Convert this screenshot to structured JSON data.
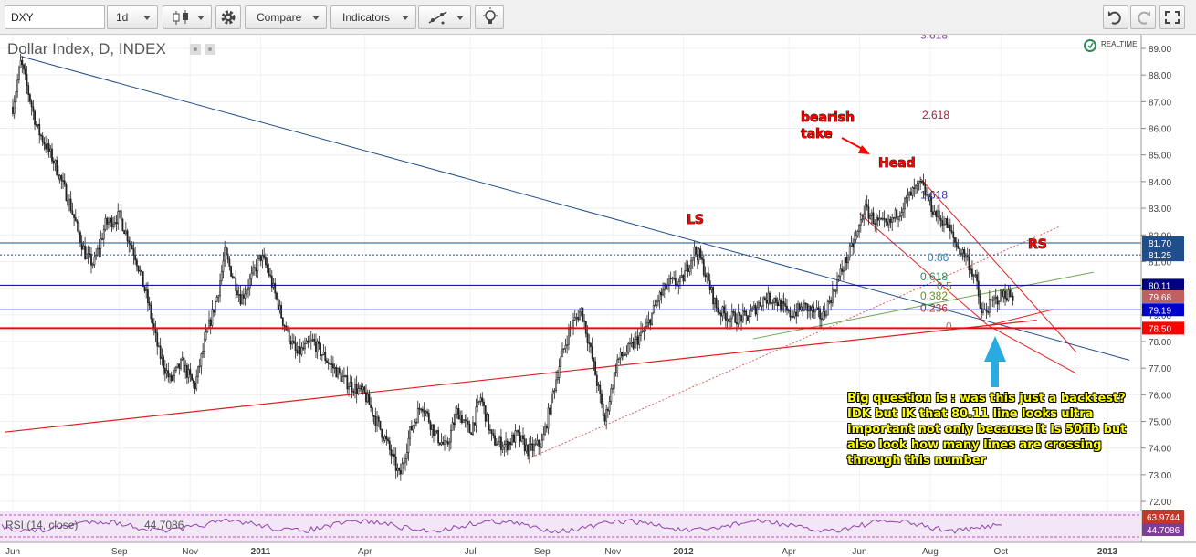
{
  "toolbar": {
    "symbol": "DXY",
    "interval": "1d",
    "compare_label": "Compare",
    "indicators_label": "Indicators"
  },
  "legend": {
    "title": "Dollar Index, D, INDEX",
    "realtime": "REALTIME",
    "rsi_label": "RSI (14, close)",
    "rsi_value": "44.7086"
  },
  "chart_data": {
    "type": "candlestick",
    "ylim": [
      71.5,
      89.5
    ],
    "y_ticks": [
      "89.00",
      "88.00",
      "87.00",
      "86.00",
      "85.00",
      "84.00",
      "83.00",
      "82.00",
      "81.00",
      "80.00",
      "79.00",
      "78.00",
      "77.00",
      "76.00",
      "75.00",
      "74.00",
      "73.00",
      "72.00"
    ],
    "x_ticks": [
      "Jun",
      "Sep",
      "Nov",
      "2011",
      "Apr",
      "Jul",
      "Sep",
      "Nov",
      "2012",
      "Apr",
      "Jun",
      "Aug",
      "Oct",
      "2013"
    ],
    "price_path": [
      [
        "2010-06-01",
        86.8
      ],
      [
        "2010-06-08",
        88.5
      ],
      [
        "2010-06-22",
        86.0
      ],
      [
        "2010-07-06",
        84.8
      ],
      [
        "2010-07-20",
        83.2
      ],
      [
        "2010-08-03",
        81.2
      ],
      [
        "2010-08-10",
        80.9
      ],
      [
        "2010-08-20",
        82.4
      ],
      [
        "2010-09-01",
        82.7
      ],
      [
        "2010-09-15",
        81.2
      ],
      [
        "2010-09-25",
        79.6
      ],
      [
        "2010-10-05",
        77.6
      ],
      [
        "2010-10-15",
        76.5
      ],
      [
        "2010-10-25",
        77.2
      ],
      [
        "2010-11-05",
        76.3
      ],
      [
        "2010-11-15",
        78.2
      ],
      [
        "2010-11-25",
        79.8
      ],
      [
        "2010-12-01",
        81.3
      ],
      [
        "2010-12-15",
        79.6
      ],
      [
        "2010-12-22",
        80.2
      ],
      [
        "2011-01-01",
        81.2
      ],
      [
        "2011-01-07",
        80.7
      ],
      [
        "2011-01-20",
        78.8
      ],
      [
        "2011-02-01",
        77.5
      ],
      [
        "2011-02-15",
        78.0
      ],
      [
        "2011-03-01",
        77.2
      ],
      [
        "2011-03-15",
        76.5
      ],
      [
        "2011-04-01",
        76.0
      ],
      [
        "2011-04-10",
        75.1
      ],
      [
        "2011-04-20",
        74.2
      ],
      [
        "2011-05-01",
        72.9
      ],
      [
        "2011-05-10",
        74.6
      ],
      [
        "2011-05-20",
        75.7
      ],
      [
        "2011-06-01",
        74.5
      ],
      [
        "2011-06-10",
        74.0
      ],
      [
        "2011-06-20",
        75.4
      ],
      [
        "2011-07-01",
        74.6
      ],
      [
        "2011-07-10",
        75.9
      ],
      [
        "2011-07-20",
        74.3
      ],
      [
        "2011-08-01",
        74.1
      ],
      [
        "2011-08-10",
        74.5
      ],
      [
        "2011-08-20",
        73.9
      ],
      [
        "2011-09-01",
        74.2
      ],
      [
        "2011-09-15",
        77.0
      ],
      [
        "2011-09-25",
        78.5
      ],
      [
        "2011-10-05",
        79.2
      ],
      [
        "2011-10-15",
        77.2
      ],
      [
        "2011-10-25",
        75.0
      ],
      [
        "2011-11-05",
        77.3
      ],
      [
        "2011-11-15",
        77.7
      ],
      [
        "2011-11-30",
        78.5
      ],
      [
        "2011-12-10",
        79.6
      ],
      [
        "2011-12-20",
        80.2
      ],
      [
        "2011-12-30",
        80.2
      ],
      [
        "2012-01-10",
        81.4
      ],
      [
        "2012-01-15",
        81.2
      ],
      [
        "2012-01-30",
        79.2
      ],
      [
        "2012-02-10",
        78.9
      ],
      [
        "2012-02-25",
        78.9
      ],
      [
        "2012-03-10",
        79.6
      ],
      [
        "2012-03-20",
        79.6
      ],
      [
        "2012-04-01",
        79.0
      ],
      [
        "2012-04-15",
        79.3
      ],
      [
        "2012-04-30",
        78.9
      ],
      [
        "2012-05-15",
        80.5
      ],
      [
        "2012-05-30",
        82.0
      ],
      [
        "2012-06-05",
        83.0
      ],
      [
        "2012-06-15",
        82.5
      ],
      [
        "2012-06-25",
        82.3
      ],
      [
        "2012-07-05",
        82.9
      ],
      [
        "2012-07-15",
        83.5
      ],
      [
        "2012-07-24",
        83.9
      ],
      [
        "2012-08-05",
        82.8
      ],
      [
        "2012-08-15",
        82.4
      ],
      [
        "2012-08-25",
        81.5
      ],
      [
        "2012-09-01",
        81.2
      ],
      [
        "2012-09-10",
        80.2
      ],
      [
        "2012-09-14",
        79.0
      ],
      [
        "2012-09-20",
        79.3
      ],
      [
        "2012-09-30",
        79.7
      ],
      [
        "2012-10-05",
        79.8
      ],
      [
        "2012-10-12",
        79.68
      ]
    ],
    "h_levels": [
      {
        "value": 81.7,
        "label": "81.70",
        "color": "#1f4e8c",
        "style": "solid"
      },
      {
        "value": 81.25,
        "label": "81.25",
        "color": "#1f4e8c",
        "style": "dotted"
      },
      {
        "value": 80.11,
        "label": "80.11",
        "color": "#000080",
        "style": "solid"
      },
      {
        "value": 79.68,
        "label": "79.68",
        "color": "#c06060",
        "style": "none"
      },
      {
        "value": 79.19,
        "label": "79.19",
        "color": "#0000cc",
        "style": "solid"
      },
      {
        "value": 78.5,
        "label": "78.50",
        "color": "#ff0000",
        "style": "thick"
      }
    ],
    "fib_labels": [
      {
        "label": "3.618",
        "value": 89.5,
        "color": "#7b3fa0"
      },
      {
        "label": "2.618",
        "value": 86.5,
        "color": "#a0203a"
      },
      {
        "label": "1.618",
        "value": 83.5,
        "color": "#3030a0"
      },
      {
        "label": "0.86",
        "value": 81.15,
        "color": "#2e86c1"
      },
      {
        "label": "0.618",
        "value": 80.43,
        "color": "#2e8b57"
      },
      {
        "label": "0.5",
        "value": 80.07,
        "color": "#6b8e23"
      },
      {
        "label": "0.382",
        "value": 79.71,
        "color": "#6b8e23"
      },
      {
        "label": "0.236",
        "value": 79.25,
        "color": "#b03030"
      },
      {
        "label": "0",
        "value": 78.56,
        "color": "#c06060"
      }
    ],
    "annotations": [
      {
        "text": "bearish",
        "color": "#ff0000"
      },
      {
        "text": "take",
        "color": "#ff0000"
      },
      {
        "text": "Head",
        "color": "#ff0000"
      },
      {
        "text": "LS",
        "color": "#ff0000"
      },
      {
        "text": "RS",
        "color": "#ff0000"
      }
    ],
    "rsi": {
      "value": 44.7086,
      "upper": 63.9744
    }
  },
  "callout_text": "Big question is : was this just a backtest? IDK but IK that 80.11 line looks ultra important not only because it is 50fib but also look how many lines are crossing through this number"
}
